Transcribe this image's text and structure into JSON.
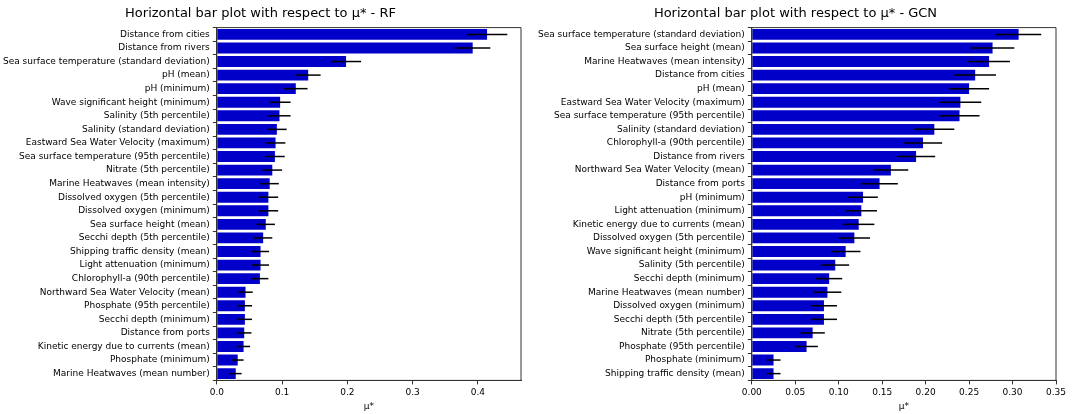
{
  "chart_data": [
    {
      "type": "bar",
      "orientation": "horizontal",
      "title": "Horizontal bar plot with respect to μ* - RF",
      "xlabel": "μ*",
      "color": "#0000c8",
      "categories": [
        "Distance from cities",
        "Distance from rivers",
        "Sea surface temperature (standard deviation)",
        "pH (mean)",
        "pH (minimum)",
        "Wave significant height (minimum)",
        "Salinity (5th percentile)",
        "Salinity (standard deviation)",
        "Eastward Sea Water Velocity (maximum)",
        "Sea surface temperature (95th percentile)",
        "Nitrate (5th percentile)",
        "Marine Heatwaves (mean intensity)",
        "Dissolved oxygen (5th percentile)",
        "Dissolved oxygen (minimum)",
        "Sea surface height (mean)",
        "Secchi depth (5th percentile)",
        "Shipping traffic density (mean)",
        "Light attenuation (minimum)",
        "Chlorophyll-a (90th percentile)",
        "Northward Sea Water Velocity (mean)",
        "Phosphate (95th percentile)",
        "Secchi depth (minimum)",
        "Distance from ports",
        "Kinetic energy due to currents (mean)",
        "Phosphate (minimum)",
        "Marine Heatwaves (mean number)"
      ],
      "values": [
        0.414,
        0.392,
        0.198,
        0.14,
        0.121,
        0.097,
        0.096,
        0.092,
        0.09,
        0.089,
        0.085,
        0.081,
        0.079,
        0.079,
        0.075,
        0.071,
        0.067,
        0.067,
        0.066,
        0.044,
        0.043,
        0.043,
        0.042,
        0.041,
        0.032,
        0.029
      ],
      "errors": [
        0.031,
        0.027,
        0.023,
        0.019,
        0.018,
        0.016,
        0.017,
        0.015,
        0.015,
        0.015,
        0.015,
        0.014,
        0.015,
        0.015,
        0.014,
        0.014,
        0.013,
        0.013,
        0.013,
        0.011,
        0.011,
        0.011,
        0.011,
        0.01,
        0.009,
        0.009
      ],
      "xlim": [
        0,
        0.466
      ],
      "xticks": [
        {
          "value": 0,
          "label": "0.0"
        },
        {
          "value": 0.1,
          "label": "0.1"
        },
        {
          "value": 0.2,
          "label": "0.2"
        },
        {
          "value": 0.3,
          "label": "0.3"
        },
        {
          "value": 0.4,
          "label": "0.4"
        }
      ]
    },
    {
      "type": "bar",
      "orientation": "horizontal",
      "title": "Horizontal bar plot with respect to μ* - GCN",
      "xlabel": "μ*",
      "color": "#0000c8",
      "categories": [
        "Sea surface temperature (standard deviation)",
        "Sea surface height (mean)",
        "Marine Heatwaves (mean intensity)",
        "Distance from cities",
        "pH (mean)",
        "Eastward Sea Water Velocity (maximum)",
        "Sea surface temperature (95th percentile)",
        "Salinity (standard deviation)",
        "Chlorophyll-a (90th percentile)",
        "Distance from rivers",
        "Northward Sea Water Velocity (mean)",
        "Distance from ports",
        "pH (minimum)",
        "Light attenuation (minimum)",
        "Kinetic energy due to currents (mean)",
        "Dissolved oxygen (5th percentile)",
        "Wave significant height (minimum)",
        "Salinity (5th percentile)",
        "Secchi depth (minimum)",
        "Marine Heatwaves (mean number)",
        "Dissolved oxygen (minimum)",
        "Secchi depth (5th percentile)",
        "Nitrate (5th percentile)",
        "Phosphate (95th percentile)",
        "Phosphate (minimum)",
        "Shipping traffic density (mean)"
      ],
      "values": [
        0.307,
        0.277,
        0.273,
        0.257,
        0.25,
        0.24,
        0.239,
        0.21,
        0.197,
        0.189,
        0.16,
        0.147,
        0.128,
        0.126,
        0.123,
        0.118,
        0.108,
        0.096,
        0.089,
        0.087,
        0.083,
        0.083,
        0.07,
        0.063,
        0.025,
        0.025
      ],
      "errors": [
        0.026,
        0.025,
        0.024,
        0.024,
        0.023,
        0.024,
        0.023,
        0.023,
        0.022,
        0.022,
        0.02,
        0.021,
        0.017,
        0.018,
        0.018,
        0.018,
        0.017,
        0.016,
        0.015,
        0.016,
        0.015,
        0.015,
        0.014,
        0.013,
        0.008,
        0.008
      ],
      "xlim": [
        0,
        0.35
      ],
      "xticks": [
        {
          "value": 0,
          "label": "0.00"
        },
        {
          "value": 0.05,
          "label": "0.05"
        },
        {
          "value": 0.1,
          "label": "0.10"
        },
        {
          "value": 0.15,
          "label": "0.15"
        },
        {
          "value": 0.2,
          "label": "0.20"
        },
        {
          "value": 0.25,
          "label": "0.25"
        },
        {
          "value": 0.3,
          "label": "0.30"
        },
        {
          "value": 0.35,
          "label": "0.35"
        }
      ]
    }
  ]
}
